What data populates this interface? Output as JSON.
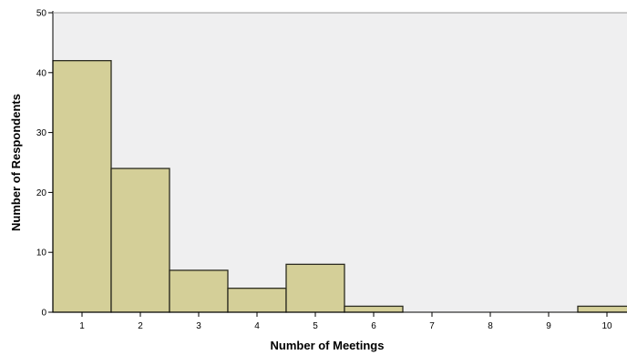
{
  "chart_data": {
    "type": "bar",
    "title": "",
    "xlabel": "Number of Meetings",
    "ylabel": "Number of Respondents",
    "categories": [
      "1",
      "2",
      "3",
      "4",
      "5",
      "6",
      "7",
      "8",
      "9",
      "10"
    ],
    "values": [
      42,
      24,
      7,
      4,
      8,
      1,
      0,
      0,
      0,
      1
    ],
    "ylim": [
      0,
      50
    ],
    "yticks": [
      0,
      10,
      20,
      30,
      40,
      50
    ],
    "grid": false,
    "legend": "none",
    "colors": {
      "plot_background": "#efeff0",
      "bar_fill": "#d4cf98",
      "bar_stroke": "#2b2b20",
      "axis": "#000000"
    }
  }
}
